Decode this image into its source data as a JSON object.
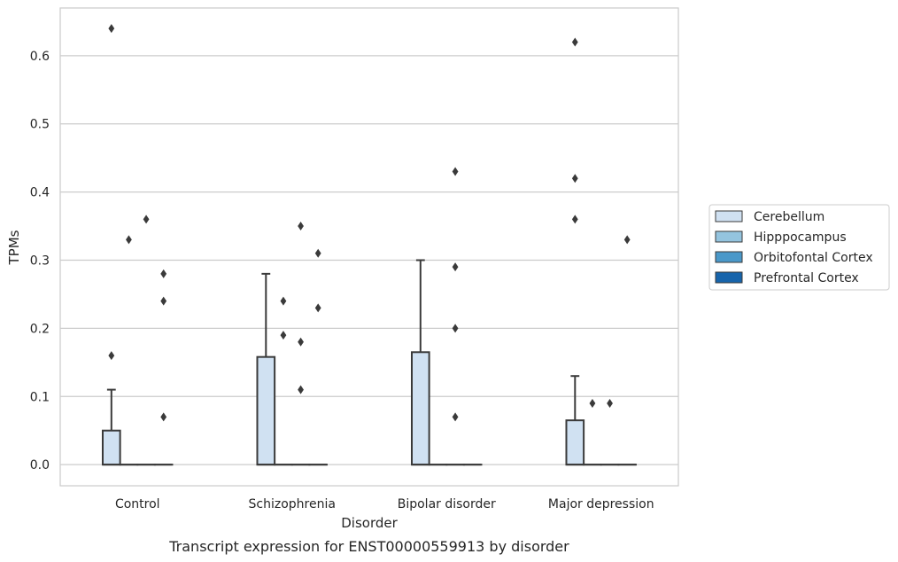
{
  "chart_data": {
    "type": "box",
    "caption": "Transcript expression for ENST00000559913 by disorder",
    "xlabel": "Disorder",
    "ylabel": "TPMs",
    "ylim": [
      -0.031,
      0.67
    ],
    "yticks": [
      0.0,
      0.1,
      0.2,
      0.3,
      0.4,
      0.5,
      0.6
    ],
    "ytick_labels": [
      "0.0",
      "0.1",
      "0.2",
      "0.3",
      "0.4",
      "0.5",
      "0.6"
    ],
    "grid": "horizontal",
    "categories": [
      "Control",
      "Schizophrenia",
      "Bipolar disorder",
      "Major depression"
    ],
    "legend": {
      "placement": "right",
      "entries": [
        "Cerebellum",
        "Hipppocampus",
        "Orbitofontal Cortex",
        "Prefrontal Cortex"
      ]
    },
    "colors": {
      "Cerebellum": "#d0e1f2",
      "Hipppocampus": "#94c4df",
      "Orbitofontal Cortex": "#4a98c9",
      "Prefrontal Cortex": "#1764ab",
      "box_edge": "#3a3a3a",
      "grid": "#cccccc"
    },
    "series": [
      {
        "name": "Cerebellum",
        "boxes": [
          {
            "category": "Control",
            "q1": 0.0,
            "median": 0.0,
            "q3": 0.05,
            "whisker_low": 0.0,
            "whisker_high": 0.11,
            "outliers": [
              0.16,
              0.64
            ]
          },
          {
            "category": "Schizophrenia",
            "q1": 0.0,
            "median": 0.0,
            "q3": 0.158,
            "whisker_low": 0.0,
            "whisker_high": 0.28,
            "outliers": []
          },
          {
            "category": "Bipolar disorder",
            "q1": 0.0,
            "median": 0.0,
            "q3": 0.165,
            "whisker_low": 0.0,
            "whisker_high": 0.3,
            "outliers": []
          },
          {
            "category": "Major depression",
            "q1": 0.0,
            "median": 0.0,
            "q3": 0.065,
            "whisker_low": 0.0,
            "whisker_high": 0.13,
            "outliers": [
              0.36,
              0.42,
              0.62
            ]
          }
        ]
      },
      {
        "name": "Hipppocampus",
        "boxes": [
          {
            "category": "Control",
            "q1": 0.0,
            "median": 0.0,
            "q3": 0.0,
            "whisker_low": 0.0,
            "whisker_high": 0.0,
            "outliers": [
              0.33
            ]
          },
          {
            "category": "Schizophrenia",
            "q1": 0.0,
            "median": 0.0,
            "q3": 0.0,
            "whisker_low": 0.0,
            "whisker_high": 0.0,
            "outliers": [
              0.19,
              0.24
            ]
          },
          {
            "category": "Bipolar disorder",
            "q1": 0.0,
            "median": 0.0,
            "q3": 0.0,
            "whisker_low": 0.0,
            "whisker_high": 0.0,
            "outliers": []
          },
          {
            "category": "Major depression",
            "q1": 0.0,
            "median": 0.0,
            "q3": 0.0,
            "whisker_low": 0.0,
            "whisker_high": 0.0,
            "outliers": [
              0.09
            ]
          }
        ]
      },
      {
        "name": "Orbitofontal Cortex",
        "boxes": [
          {
            "category": "Control",
            "q1": 0.0,
            "median": 0.0,
            "q3": 0.0,
            "whisker_low": 0.0,
            "whisker_high": 0.0,
            "outliers": [
              0.36
            ]
          },
          {
            "category": "Schizophrenia",
            "q1": 0.0,
            "median": 0.0,
            "q3": 0.0,
            "whisker_low": 0.0,
            "whisker_high": 0.0,
            "outliers": [
              0.11,
              0.18,
              0.35
            ]
          },
          {
            "category": "Bipolar disorder",
            "q1": 0.0,
            "median": 0.0,
            "q3": 0.0,
            "whisker_low": 0.0,
            "whisker_high": 0.0,
            "outliers": [
              0.07,
              0.2,
              0.29,
              0.43
            ]
          },
          {
            "category": "Major depression",
            "q1": 0.0,
            "median": 0.0,
            "q3": 0.0,
            "whisker_low": 0.0,
            "whisker_high": 0.0,
            "outliers": [
              0.09
            ]
          }
        ]
      },
      {
        "name": "Prefrontal Cortex",
        "boxes": [
          {
            "category": "Control",
            "q1": 0.0,
            "median": 0.0,
            "q3": 0.0,
            "whisker_low": 0.0,
            "whisker_high": 0.0,
            "outliers": [
              0.07,
              0.24,
              0.28
            ]
          },
          {
            "category": "Schizophrenia",
            "q1": 0.0,
            "median": 0.0,
            "q3": 0.0,
            "whisker_low": 0.0,
            "whisker_high": 0.0,
            "outliers": [
              0.23,
              0.31
            ]
          },
          {
            "category": "Bipolar disorder",
            "q1": 0.0,
            "median": 0.0,
            "q3": 0.0,
            "whisker_low": 0.0,
            "whisker_high": 0.0,
            "outliers": []
          },
          {
            "category": "Major depression",
            "q1": 0.0,
            "median": 0.0,
            "q3": 0.0,
            "whisker_low": 0.0,
            "whisker_high": 0.0,
            "outliers": [
              0.33
            ]
          }
        ]
      }
    ]
  }
}
